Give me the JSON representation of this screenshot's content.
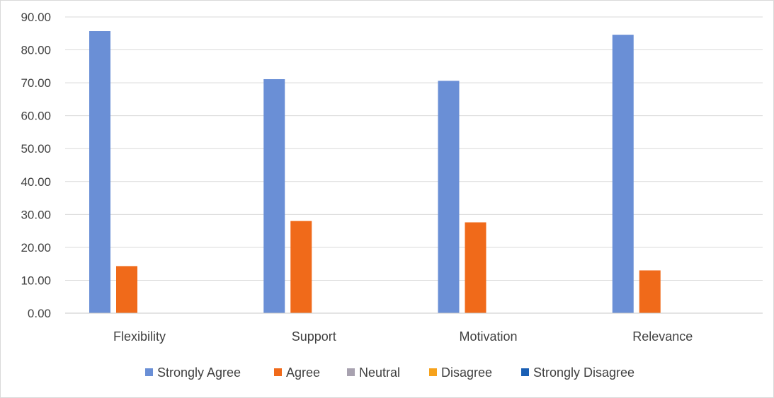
{
  "chart_data": {
    "type": "bar",
    "categories": [
      "Flexibility",
      "Support",
      "Motivation",
      "Relevance"
    ],
    "series": [
      {
        "name": "Strongly Agree",
        "color": "#6a8fd6",
        "values": [
          85.7,
          71.1,
          70.6,
          84.6
        ]
      },
      {
        "name": "Agree",
        "color": "#f06a1a",
        "values": [
          14.3,
          28.0,
          27.6,
          13.0
        ]
      },
      {
        "name": "Neutral",
        "color": "#a8a2b0",
        "values": [
          0,
          0,
          0,
          0
        ]
      },
      {
        "name": "Disagree",
        "color": "#f6a21c",
        "values": [
          0,
          0,
          0,
          0
        ]
      },
      {
        "name": "Strongly Disagree",
        "color": "#1a5fb4",
        "values": [
          0,
          0,
          0,
          0
        ]
      }
    ],
    "y_ticks": [
      "0.00",
      "10.00",
      "20.00",
      "30.00",
      "40.00",
      "50.00",
      "60.00",
      "70.00",
      "80.00",
      "90.00"
    ],
    "ylim": [
      0,
      90
    ],
    "title": "",
    "xlabel": "",
    "ylabel": "",
    "grid": true,
    "legend_position": "bottom"
  }
}
